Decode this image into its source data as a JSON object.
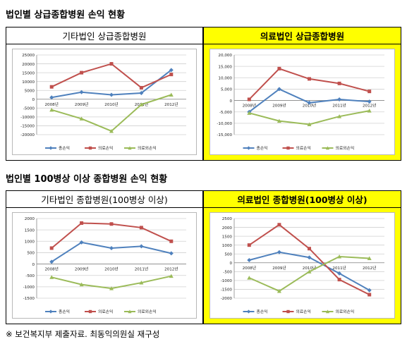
{
  "section1": {
    "title": "법인별 상급종합병원 손익 현황"
  },
  "section2": {
    "title": "법인별 100병상 이상 종합병원 손익 현황"
  },
  "footnote": "※ 보건복지부 제출자료. 최동익의원실 재구성",
  "colors": {
    "highlight": "#ffff00",
    "series": [
      "#4f81bd",
      "#c0504d",
      "#9bbb59"
    ]
  },
  "panels": [
    {
      "header": "기타법인 상급종합병원",
      "highlight": false
    },
    {
      "header": "의료법인 상급종합병원",
      "highlight": true
    },
    {
      "header": "기타법인 종합병원(100병상 이상)",
      "highlight": false
    },
    {
      "header": "의료법인 종합병원(100병상 이상)",
      "highlight": true
    }
  ],
  "chart_data": [
    {
      "type": "line",
      "categories": [
        "2008년",
        "2009년",
        "2010년",
        "2011년",
        "2012년"
      ],
      "ylim": [
        -20000,
        25000
      ],
      "ytick_step": 5000,
      "thousands_sep": false,
      "legend": "bottom",
      "grid": true,
      "series": [
        {
          "name": "총손익",
          "values": [
            1000,
            4000,
            2500,
            3500,
            16500
          ]
        },
        {
          "name": "의료손익",
          "values": [
            7000,
            15000,
            20000,
            6500,
            14000
          ]
        },
        {
          "name": "의료외손익",
          "values": [
            -6000,
            -11000,
            -18000,
            -3000,
            2500
          ]
        }
      ]
    },
    {
      "type": "line",
      "categories": [
        "2008년",
        "2009년",
        "2010년",
        "2011년",
        "2012년"
      ],
      "ylim": [
        -15000,
        20000
      ],
      "ytick_step": 5000,
      "thousands_sep": true,
      "legend": "bottom",
      "grid": true,
      "series": [
        {
          "name": "총손익",
          "values": [
            -5000,
            5000,
            -1000,
            500,
            -500
          ]
        },
        {
          "name": "의료손익",
          "values": [
            500,
            14000,
            9500,
            7500,
            4000
          ]
        },
        {
          "name": "의료외손익",
          "values": [
            -5500,
            -9000,
            -10500,
            -7000,
            -4500
          ]
        }
      ]
    },
    {
      "type": "line",
      "categories": [
        "2008년",
        "2009년",
        "2010년",
        "2011년",
        "2012년"
      ],
      "ylim": [
        -1500,
        2000
      ],
      "ytick_step": 500,
      "thousands_sep": false,
      "legend": "bottom",
      "grid": true,
      "series": [
        {
          "name": "총손익",
          "values": [
            100,
            950,
            700,
            780,
            470
          ]
        },
        {
          "name": "의료손익",
          "values": [
            700,
            1800,
            1760,
            1600,
            1000
          ]
        },
        {
          "name": "의료외손익",
          "values": [
            -580,
            -900,
            -1070,
            -820,
            -530
          ]
        }
      ]
    },
    {
      "type": "line",
      "categories": [
        "2008년",
        "2009년",
        "2010년",
        "2011년",
        "2012년"
      ],
      "ylim": [
        -2000,
        2500
      ],
      "ytick_step": 500,
      "thousands_sep": false,
      "legend": "bottom",
      "grid": true,
      "series": [
        {
          "name": "총손익",
          "values": [
            150,
            600,
            300,
            -600,
            -1550
          ]
        },
        {
          "name": "의료손익",
          "values": [
            1000,
            2150,
            800,
            -950,
            -1800
          ]
        },
        {
          "name": "의료외손익",
          "values": [
            -850,
            -1600,
            -500,
            350,
            250
          ]
        }
      ]
    }
  ]
}
